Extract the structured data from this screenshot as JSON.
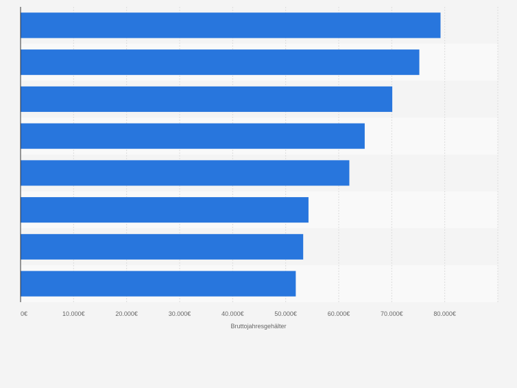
{
  "chart_data": {
    "type": "bar",
    "orientation": "horizontal",
    "categories": [
      "",
      "",
      "",
      "",
      "",
      "",
      "",
      ""
    ],
    "values": [
      79200,
      75200,
      70100,
      64900,
      62000,
      54300,
      53300,
      51900
    ],
    "title": "",
    "xlabel": "Bruttojahresgehälter",
    "ylabel": "",
    "xlim": [
      0,
      90000
    ],
    "x_ticks": [
      {
        "value": 0,
        "label": "0€"
      },
      {
        "value": 10000,
        "label": "10.000€"
      },
      {
        "value": 20000,
        "label": "20.000€"
      },
      {
        "value": 30000,
        "label": "30.000€"
      },
      {
        "value": 40000,
        "label": "40.000€"
      },
      {
        "value": 50000,
        "label": "50.000€"
      },
      {
        "value": 60000,
        "label": "60.000€"
      },
      {
        "value": 70000,
        "label": "70.000€"
      },
      {
        "value": 80000,
        "label": "80.000€"
      }
    ],
    "grid": true,
    "legend": "none",
    "colors": {
      "bar": "#2876dd",
      "background": "#f4f4f4",
      "band_light": "#f9f9f9",
      "grid": "#dcdcdc",
      "axis": "#333333",
      "tick_text": "#666666"
    }
  }
}
